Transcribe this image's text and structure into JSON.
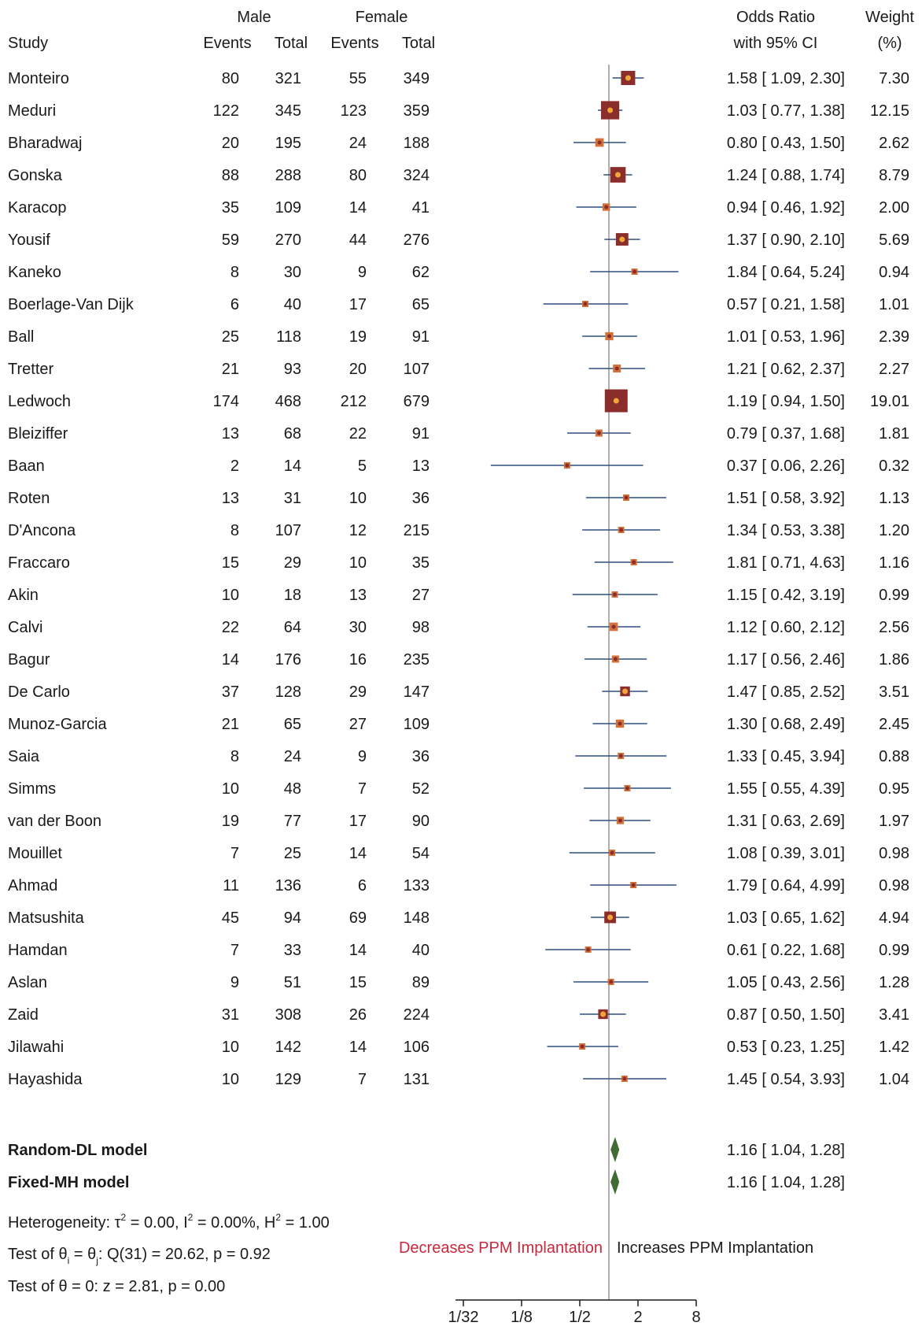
{
  "headers": {
    "male": "Male",
    "female": "Female",
    "study": "Study",
    "events": "Events",
    "total": "Total",
    "odds_ratio": "Odds Ratio",
    "ci": "with 95% CI",
    "weight": "Weight",
    "weight_unit": "(%)"
  },
  "colors": {
    "marker_dark": "#8b2d2a",
    "marker_light": "#d2713a",
    "marker_dot": "#f2a63a",
    "ci_line": "#2f4f7f",
    "diamond": "#3f6b34",
    "ref_line": "#b0b0b0",
    "decrease_text": "#c8283c"
  },
  "chart_data": {
    "type": "forest",
    "x_scale": "log2",
    "xlim": [
      0.03125,
      8
    ],
    "x_ticks": [
      "1/32",
      "1/8",
      "1/2",
      "2",
      "8"
    ],
    "x_tick_values": [
      0.03125,
      0.125,
      0.5,
      2,
      8
    ],
    "reference_line": 1,
    "studies": [
      {
        "name": "Monteiro",
        "m_events": "80",
        "m_total": "321",
        "f_events": "55",
        "f_total": "349",
        "or": 1.58,
        "lo": 1.09,
        "hi": 2.3,
        "ci_text": "1.58 [ 1.09,  2.30]",
        "weight": "7.30"
      },
      {
        "name": "Meduri",
        "m_events": "122",
        "m_total": "345",
        "f_events": "123",
        "f_total": "359",
        "or": 1.03,
        "lo": 0.77,
        "hi": 1.38,
        "ci_text": "1.03 [ 0.77,  1.38]",
        "weight": "12.15"
      },
      {
        "name": "Bharadwaj",
        "m_events": "20",
        "m_total": "195",
        "f_events": "24",
        "f_total": "188",
        "or": 0.8,
        "lo": 0.43,
        "hi": 1.5,
        "ci_text": "0.80 [ 0.43,  1.50]",
        "weight": "2.62"
      },
      {
        "name": "Gonska",
        "m_events": "88",
        "m_total": "288",
        "f_events": "80",
        "f_total": "324",
        "or": 1.24,
        "lo": 0.88,
        "hi": 1.74,
        "ci_text": "1.24 [ 0.88,  1.74]",
        "weight": "8.79"
      },
      {
        "name": "Karacop",
        "m_events": "35",
        "m_total": "109",
        "f_events": "14",
        "f_total": "41",
        "or": 0.94,
        "lo": 0.46,
        "hi": 1.92,
        "ci_text": "0.94 [ 0.46,  1.92]",
        "weight": "2.00"
      },
      {
        "name": "Yousif",
        "m_events": "59",
        "m_total": "270",
        "f_events": "44",
        "f_total": "276",
        "or": 1.37,
        "lo": 0.9,
        "hi": 2.1,
        "ci_text": "1.37 [ 0.90,  2.10]",
        "weight": "5.69"
      },
      {
        "name": "Kaneko",
        "m_events": "8",
        "m_total": "30",
        "f_events": "9",
        "f_total": "62",
        "or": 1.84,
        "lo": 0.64,
        "hi": 5.24,
        "ci_text": "1.84 [ 0.64,  5.24]",
        "weight": "0.94"
      },
      {
        "name": "Boerlage-Van Dijk",
        "m_events": "6",
        "m_total": "40",
        "f_events": "17",
        "f_total": "65",
        "or": 0.57,
        "lo": 0.21,
        "hi": 1.58,
        "ci_text": "0.57 [ 0.21,  1.58]",
        "weight": "1.01"
      },
      {
        "name": "Ball",
        "m_events": "25",
        "m_total": "118",
        "f_events": "19",
        "f_total": "91",
        "or": 1.01,
        "lo": 0.53,
        "hi": 1.96,
        "ci_text": "1.01 [ 0.53,  1.96]",
        "weight": "2.39"
      },
      {
        "name": "Tretter",
        "m_events": "21",
        "m_total": "93",
        "f_events": "20",
        "f_total": "107",
        "or": 1.21,
        "lo": 0.62,
        "hi": 2.37,
        "ci_text": "1.21 [ 0.62,  2.37]",
        "weight": "2.27"
      },
      {
        "name": "Ledwoch",
        "m_events": "174",
        "m_total": "468",
        "f_events": "212",
        "f_total": "679",
        "or": 1.19,
        "lo": 0.94,
        "hi": 1.5,
        "ci_text": "1.19 [ 0.94,  1.50]",
        "weight": "19.01"
      },
      {
        "name": "Bleiziffer",
        "m_events": "13",
        "m_total": "68",
        "f_events": "22",
        "f_total": "91",
        "or": 0.79,
        "lo": 0.37,
        "hi": 1.68,
        "ci_text": "0.79 [ 0.37,  1.68]",
        "weight": "1.81"
      },
      {
        "name": "Baan",
        "m_events": "2",
        "m_total": "14",
        "f_events": "5",
        "f_total": "13",
        "or": 0.37,
        "lo": 0.06,
        "hi": 2.26,
        "ci_text": "0.37 [ 0.06,  2.26]",
        "weight": "0.32"
      },
      {
        "name": "Roten",
        "m_events": "13",
        "m_total": "31",
        "f_events": "10",
        "f_total": "36",
        "or": 1.51,
        "lo": 0.58,
        "hi": 3.92,
        "ci_text": "1.51 [ 0.58,  3.92]",
        "weight": "1.13"
      },
      {
        "name": "D'Ancona",
        "m_events": "8",
        "m_total": "107",
        "f_events": "12",
        "f_total": "215",
        "or": 1.34,
        "lo": 0.53,
        "hi": 3.38,
        "ci_text": "1.34 [ 0.53,  3.38]",
        "weight": "1.20"
      },
      {
        "name": "Fraccaro",
        "m_events": "15",
        "m_total": "29",
        "f_events": "10",
        "f_total": "35",
        "or": 1.81,
        "lo": 0.71,
        "hi": 4.63,
        "ci_text": "1.81 [ 0.71,  4.63]",
        "weight": "1.16"
      },
      {
        "name": "Akin",
        "m_events": "10",
        "m_total": "18",
        "f_events": "13",
        "f_total": "27",
        "or": 1.15,
        "lo": 0.42,
        "hi": 3.19,
        "ci_text": "1.15 [ 0.42,  3.19]",
        "weight": "0.99"
      },
      {
        "name": "Calvi",
        "m_events": "22",
        "m_total": "64",
        "f_events": "30",
        "f_total": "98",
        "or": 1.12,
        "lo": 0.6,
        "hi": 2.12,
        "ci_text": "1.12 [ 0.60,  2.12]",
        "weight": "2.56"
      },
      {
        "name": "Bagur",
        "m_events": "14",
        "m_total": "176",
        "f_events": "16",
        "f_total": "235",
        "or": 1.17,
        "lo": 0.56,
        "hi": 2.46,
        "ci_text": "1.17 [ 0.56,  2.46]",
        "weight": "1.86"
      },
      {
        "name": "De Carlo",
        "m_events": "37",
        "m_total": "128",
        "f_events": "29",
        "f_total": "147",
        "or": 1.47,
        "lo": 0.85,
        "hi": 2.52,
        "ci_text": "1.47 [ 0.85,  2.52]",
        "weight": "3.51"
      },
      {
        "name": "Munoz-Garcia",
        "m_events": "21",
        "m_total": "65",
        "f_events": "27",
        "f_total": "109",
        "or": 1.3,
        "lo": 0.68,
        "hi": 2.49,
        "ci_text": "1.30 [ 0.68,  2.49]",
        "weight": "2.45"
      },
      {
        "name": "Saia",
        "m_events": "8",
        "m_total": "24",
        "f_events": "9",
        "f_total": "36",
        "or": 1.33,
        "lo": 0.45,
        "hi": 3.94,
        "ci_text": "1.33 [ 0.45,  3.94]",
        "weight": "0.88"
      },
      {
        "name": "Simms",
        "m_events": "10",
        "m_total": "48",
        "f_events": "7",
        "f_total": "52",
        "or": 1.55,
        "lo": 0.55,
        "hi": 4.39,
        "ci_text": "1.55 [ 0.55,  4.39]",
        "weight": "0.95"
      },
      {
        "name": "van der Boon",
        "m_events": "19",
        "m_total": "77",
        "f_events": "17",
        "f_total": "90",
        "or": 1.31,
        "lo": 0.63,
        "hi": 2.69,
        "ci_text": "1.31 [ 0.63,  2.69]",
        "weight": "1.97"
      },
      {
        "name": "Mouillet",
        "m_events": "7",
        "m_total": "25",
        "f_events": "14",
        "f_total": "54",
        "or": 1.08,
        "lo": 0.39,
        "hi": 3.01,
        "ci_text": "1.08 [ 0.39,  3.01]",
        "weight": "0.98"
      },
      {
        "name": "Ahmad",
        "m_events": "11",
        "m_total": "136",
        "f_events": "6",
        "f_total": "133",
        "or": 1.79,
        "lo": 0.64,
        "hi": 4.99,
        "ci_text": "1.79 [ 0.64,  4.99]",
        "weight": "0.98"
      },
      {
        "name": "Matsushita",
        "m_events": "45",
        "m_total": "94",
        "f_events": "69",
        "f_total": "148",
        "or": 1.03,
        "lo": 0.65,
        "hi": 1.62,
        "ci_text": "1.03 [ 0.65,  1.62]",
        "weight": "4.94"
      },
      {
        "name": "Hamdan",
        "m_events": "7",
        "m_total": "33",
        "f_events": "14",
        "f_total": "40",
        "or": 0.61,
        "lo": 0.22,
        "hi": 1.68,
        "ci_text": "0.61 [ 0.22,  1.68]",
        "weight": "0.99"
      },
      {
        "name": "Aslan",
        "m_events": "9",
        "m_total": "51",
        "f_events": "15",
        "f_total": "89",
        "or": 1.05,
        "lo": 0.43,
        "hi": 2.56,
        "ci_text": "1.05 [ 0.43,  2.56]",
        "weight": "1.28"
      },
      {
        "name": "Zaid",
        "m_events": "31",
        "m_total": "308",
        "f_events": "26",
        "f_total": "224",
        "or": 0.87,
        "lo": 0.5,
        "hi": 1.5,
        "ci_text": "0.87 [ 0.50,  1.50]",
        "weight": "3.41"
      },
      {
        "name": "Jilawahi",
        "m_events": "10",
        "m_total": "142",
        "f_events": "14",
        "f_total": "106",
        "or": 0.53,
        "lo": 0.23,
        "hi": 1.25,
        "ci_text": "0.53 [ 0.23,  1.25]",
        "weight": "1.42"
      },
      {
        "name": "Hayashida",
        "m_events": "10",
        "m_total": "129",
        "f_events": "7",
        "f_total": "131",
        "or": 1.45,
        "lo": 0.54,
        "hi": 3.93,
        "ci_text": "1.45 [ 0.54,  3.93]",
        "weight": "1.04"
      }
    ],
    "summaries": [
      {
        "name": "Random-DL model",
        "or": 1.16,
        "lo": 1.04,
        "hi": 1.28,
        "ci_text": "1.16 [ 1.04,  1.28]"
      },
      {
        "name": "Fixed-MH model",
        "or": 1.16,
        "lo": 1.04,
        "hi": 1.28,
        "ci_text": "1.16 [ 1.04,  1.28]"
      }
    ],
    "stats": {
      "heterogeneity": [
        "Heterogeneity: τ",
        "2",
        " = 0.00, I",
        "2",
        " = 0.00%, H",
        "2",
        " = 1.00"
      ],
      "test_theta_i": [
        "Test of θ",
        "i",
        " = θ",
        "j",
        ": Q(31) = 20.62, p = 0.92"
      ],
      "test_theta": "Test of θ = 0: z = 2.81, p = 0.00"
    },
    "direction_labels": {
      "left": "Decreases PPM Implantation",
      "right": "Increases PPM Implantation"
    }
  }
}
